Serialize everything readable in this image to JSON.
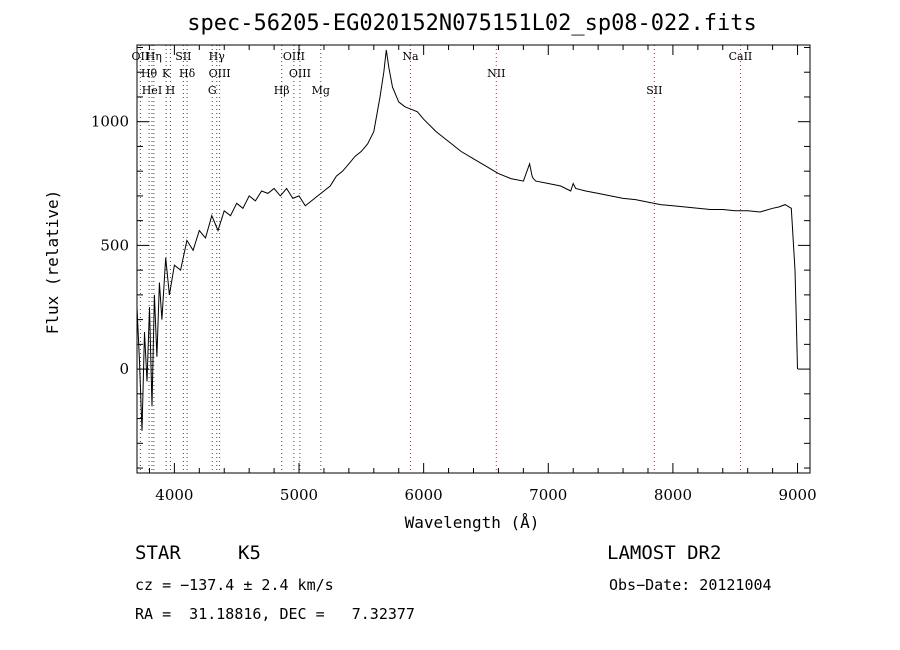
{
  "chart_data": {
    "type": "line",
    "title": "spec-56205-EG020152N075151L02_sp08-022.fits",
    "xlabel": "Wavelength (Å)",
    "ylabel": "Flux (relative)",
    "xlim": [
      3700,
      9100
    ],
    "ylim": [
      -420,
      1310
    ],
    "x_ticks": [
      4000,
      5000,
      6000,
      7000,
      8000,
      9000
    ],
    "y_ticks": [
      0,
      500,
      1000
    ],
    "grid": false,
    "series": [
      {
        "x": [
          3700,
          3720,
          3740,
          3760,
          3780,
          3800,
          3820,
          3840,
          3860,
          3880,
          3900,
          3930,
          3960,
          4000,
          4050,
          4100,
          4150,
          4200,
          4250,
          4300,
          4350,
          4400,
          4450,
          4500,
          4550,
          4600,
          4650,
          4700,
          4750,
          4800,
          4850,
          4900,
          4950,
          5000,
          5050,
          5100,
          5150,
          5200,
          5250,
          5300,
          5350,
          5400,
          5450,
          5500,
          5550,
          5600,
          5650,
          5680,
          5700,
          5720,
          5750,
          5800,
          5850,
          5900,
          5950,
          6000,
          6100,
          6200,
          6300,
          6400,
          6500,
          6600,
          6700,
          6800,
          6850,
          6870,
          6880,
          6900,
          7000,
          7100,
          7180,
          7200,
          7220,
          7300,
          7400,
          7500,
          7600,
          7700,
          7800,
          7900,
          8000,
          8100,
          8200,
          8300,
          8400,
          8500,
          8600,
          8700,
          8800,
          8850,
          8900,
          8950,
          8980,
          8990,
          9000
        ],
        "y": [
          250,
          30,
          -250,
          150,
          -50,
          250,
          -150,
          300,
          50,
          350,
          200,
          450,
          300,
          420,
          400,
          520,
          480,
          560,
          530,
          620,
          560,
          640,
          620,
          670,
          650,
          700,
          680,
          720,
          710,
          730,
          700,
          730,
          690,
          700,
          660,
          680,
          700,
          720,
          740,
          780,
          800,
          830,
          860,
          880,
          910,
          960,
          1100,
          1200,
          1290,
          1220,
          1140,
          1080,
          1060,
          1050,
          1040,
          1010,
          960,
          920,
          880,
          850,
          820,
          790,
          770,
          760,
          830,
          780,
          770,
          760,
          750,
          740,
          720,
          750,
          730,
          720,
          710,
          700,
          690,
          685,
          675,
          665,
          660,
          655,
          650,
          645,
          645,
          640,
          640,
          635,
          650,
          655,
          665,
          650,
          400,
          200,
          0
        ]
      }
    ],
    "spectral_lines": [
      {
        "label": "OII",
        "x": 3727,
        "dy": 0
      },
      {
        "label": "Hθ",
        "x": 3797,
        "dy": 0
      },
      {
        "label": "HeI",
        "x": 3820,
        "dy": 0
      },
      {
        "label": "Hη",
        "x": 3835,
        "dy": 0
      },
      {
        "label": "K",
        "x": 3934,
        "dy": 0
      },
      {
        "label": "H",
        "x": 3968,
        "dy": 0
      },
      {
        "label": "SII",
        "x": 4072,
        "dy": 0
      },
      {
        "label": "Hδ",
        "x": 4102,
        "dy": 0
      },
      {
        "label": "G",
        "x": 4304,
        "dy": 0
      },
      {
        "label": "Hγ",
        "x": 4340,
        "dy": 0
      },
      {
        "label": "OIII",
        "x": 4363,
        "dy": 0
      },
      {
        "label": "Hβ",
        "x": 4861,
        "dy": 0
      },
      {
        "label": "OIII",
        "x": 4959,
        "dy": 0
      },
      {
        "label": "OIII",
        "x": 5007,
        "dy": 0
      },
      {
        "label": "Mg",
        "x": 5175,
        "dy": 0
      },
      {
        "label": "Na",
        "x": 5894,
        "dy": 0
      },
      {
        "label": "NII",
        "x": 6583,
        "dy": 0
      },
      {
        "label": "SII",
        "x": 7851,
        "dy": 0
      },
      {
        "label": "CaII",
        "x": 8542,
        "dy": 0
      }
    ]
  },
  "info": {
    "class_label": "STAR",
    "subclass_label": "K5",
    "survey_label": "LAMOST DR2",
    "cz_text": "cz = −137.4 ± 2.4 km/s",
    "obs_date_text": "Obs−Date: 20121004",
    "radec_text": "RA =  31.18816, DEC =   7.32377"
  }
}
